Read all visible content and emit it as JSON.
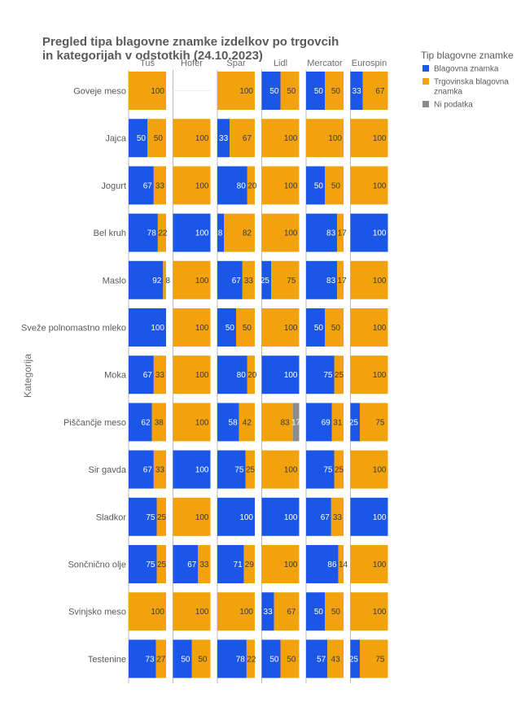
{
  "chart_data": {
    "type": "bar",
    "orientation": "horizontal-stacked-100",
    "title_lines": [
      "Pregled tipa blagovne znamke izdelkov po trgovcih",
      "in kategorijah v odstotkih (24.10.2023)"
    ],
    "ylabel": "Kategorija",
    "stores": [
      "Tuš",
      "Hofer",
      "Spar",
      "Lidl",
      "Mercator",
      "Eurospin"
    ],
    "categories": [
      "Goveje meso",
      "Jajca",
      "Jogurt",
      "Bel kruh",
      "Maslo",
      "Sveže polnomastno mleko",
      "Moka",
      "Piščančje meso",
      "Sir gavda",
      "Sladkor",
      "Sončnično olje",
      "Svinjsko meso",
      "Testenine"
    ],
    "legend": {
      "title": "Tip blagovne znamke",
      "position": "top-right",
      "entries": [
        {
          "key": "blagovna",
          "label": "Blagovna znamka",
          "color": "#1a56e8"
        },
        {
          "key": "trgovinska",
          "label": "Trgovinska blagovna znamka",
          "color": "#f2a20c"
        },
        {
          "key": "ni_podatka",
          "label": "Ni podatka",
          "color": "#8c8c8c"
        }
      ]
    },
    "data": {
      "Tuš": [
        [
          0,
          100,
          0
        ],
        [
          50,
          50,
          0
        ],
        [
          67,
          33,
          0
        ],
        [
          78,
          22,
          0
        ],
        [
          92,
          8,
          0
        ],
        [
          100,
          0,
          0
        ],
        [
          67,
          33,
          0
        ],
        [
          62,
          38,
          0
        ],
        [
          67,
          33,
          0
        ],
        [
          75,
          25,
          0
        ],
        [
          75,
          25,
          0
        ],
        [
          0,
          100,
          0
        ],
        [
          73,
          27,
          0
        ]
      ],
      "Hofer": [
        null,
        [
          0,
          100,
          0
        ],
        [
          0,
          100,
          0
        ],
        [
          100,
          0,
          0
        ],
        [
          0,
          100,
          0
        ],
        [
          0,
          100,
          0
        ],
        [
          0,
          100,
          0
        ],
        [
          0,
          100,
          0
        ],
        [
          100,
          0,
          0
        ],
        [
          0,
          100,
          0
        ],
        [
          67,
          33,
          0
        ],
        [
          0,
          100,
          0
        ],
        [
          50,
          50,
          0
        ]
      ],
      "Spar": [
        [
          0,
          100,
          0
        ],
        [
          33,
          67,
          0
        ],
        [
          80,
          20,
          0
        ],
        [
          18,
          82,
          0
        ],
        [
          67,
          33,
          0
        ],
        [
          50,
          50,
          0
        ],
        [
          80,
          20,
          0
        ],
        [
          58,
          42,
          0
        ],
        [
          75,
          25,
          0
        ],
        [
          100,
          0,
          0
        ],
        [
          71,
          29,
          0
        ],
        [
          0,
          100,
          0
        ],
        [
          78,
          22,
          0
        ]
      ],
      "Lidl": [
        [
          50,
          50,
          0
        ],
        [
          0,
          100,
          0
        ],
        [
          0,
          100,
          0
        ],
        [
          0,
          100,
          0
        ],
        [
          25,
          75,
          0
        ],
        [
          0,
          100,
          0
        ],
        [
          100,
          0,
          0
        ],
        [
          0,
          83,
          17
        ],
        [
          0,
          100,
          0
        ],
        [
          100,
          0,
          0
        ],
        [
          0,
          100,
          0
        ],
        [
          33,
          67,
          0
        ],
        [
          50,
          50,
          0
        ]
      ],
      "Mercator": [
        [
          50,
          50,
          0
        ],
        [
          0,
          100,
          0
        ],
        [
          50,
          50,
          0
        ],
        [
          83,
          17,
          0
        ],
        [
          83,
          17,
          0
        ],
        [
          50,
          50,
          0
        ],
        [
          75,
          25,
          0
        ],
        [
          69,
          31,
          0
        ],
        [
          75,
          25,
          0
        ],
        [
          67,
          33,
          0
        ],
        [
          86,
          14,
          0
        ],
        [
          50,
          50,
          0
        ],
        [
          57,
          43,
          0
        ]
      ],
      "Eurospin": [
        [
          33,
          67,
          0
        ],
        [
          0,
          100,
          0
        ],
        [
          0,
          100,
          0
        ],
        [
          100,
          0,
          0
        ],
        [
          0,
          100,
          0
        ],
        [
          0,
          100,
          0
        ],
        [
          0,
          100,
          0
        ],
        [
          25,
          75,
          0
        ],
        [
          0,
          100,
          0
        ],
        [
          100,
          0,
          0
        ],
        [
          0,
          100,
          0
        ],
        [
          0,
          100,
          0
        ],
        [
          25,
          75,
          0
        ]
      ]
    },
    "xlim": [
      0,
      100
    ],
    "grid": false
  }
}
